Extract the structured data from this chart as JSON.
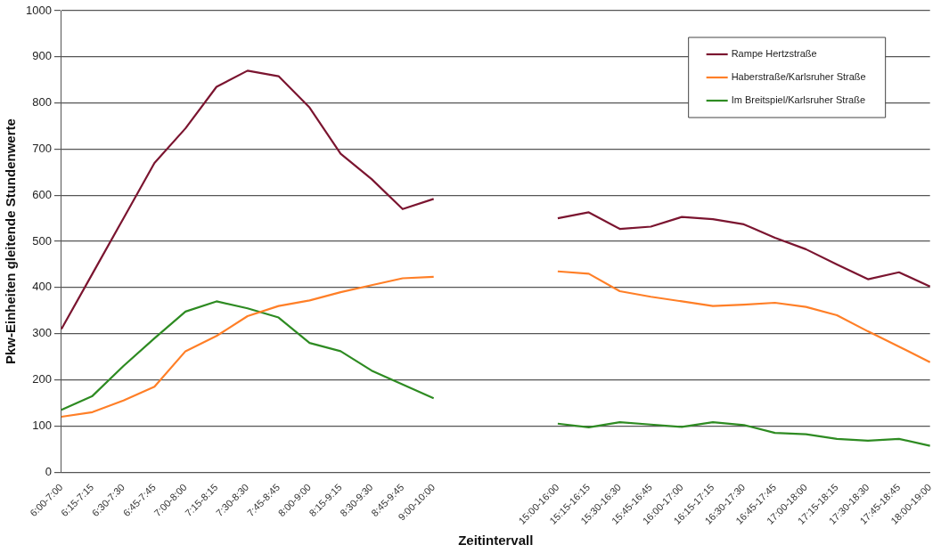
{
  "chart_data": {
    "type": "line",
    "xlabel": "Zeitintervall",
    "ylabel": "Pkw-Einheiten gleitende Stundenwerte",
    "categories": [
      "6:00-7:00",
      "6:15-7:15",
      "6:30-7:30",
      "6:45-7:45",
      "7:00-8:00",
      "7:15-8:15",
      "7:30-8:30",
      "7:45-8:45",
      "8:00-9:00",
      "8:15-9:15",
      "8:30-9:30",
      "8:45-9:45",
      "9:00-10:00",
      null,
      null,
      null,
      "15:00-16:00",
      "15:15-16:15",
      "15:30-16:30",
      "15:45-16:45",
      "16:00-17:00",
      "16:15-17:15",
      "16:30-17:30",
      "16:45-17:45",
      "17:00-18:00",
      "17:15-18:15",
      "17:30-18:30",
      "17:45-18:45",
      "18:00-19:00"
    ],
    "series": [
      {
        "name": "Rampe Hertzstraße",
        "color": "#7b1530",
        "values": [
          310,
          430,
          550,
          670,
          745,
          835,
          870,
          858,
          790,
          690,
          635,
          570,
          592,
          null,
          null,
          null,
          550,
          563,
          527,
          532,
          553,
          548,
          537,
          508,
          483,
          450,
          418,
          433,
          402
        ]
      },
      {
        "name": "Haberstraße/Karlsruher Straße",
        "color": "#ff7f27",
        "values": [
          120,
          130,
          155,
          185,
          262,
          295,
          338,
          360,
          372,
          390,
          405,
          420,
          423,
          null,
          null,
          null,
          435,
          430,
          392,
          380,
          370,
          360,
          363,
          367,
          358,
          340,
          305,
          272,
          238
        ]
      },
      {
        "name": "Im Breitspiel/Karlsruher Straße",
        "color": "#2e8b22",
        "values": [
          135,
          165,
          230,
          290,
          348,
          370,
          355,
          335,
          280,
          262,
          220,
          190,
          160,
          null,
          null,
          null,
          105,
          97,
          108,
          103,
          98,
          108,
          102,
          85,
          82,
          72,
          68,
          72,
          57
        ]
      }
    ],
    "ylim": [
      0,
      1000
    ],
    "yticks": [
      0,
      100,
      200,
      300,
      400,
      500,
      600,
      700,
      800,
      900,
      1000
    ],
    "grid": "y",
    "legend": "top right",
    "marker": "none",
    "line_style": "solid"
  }
}
